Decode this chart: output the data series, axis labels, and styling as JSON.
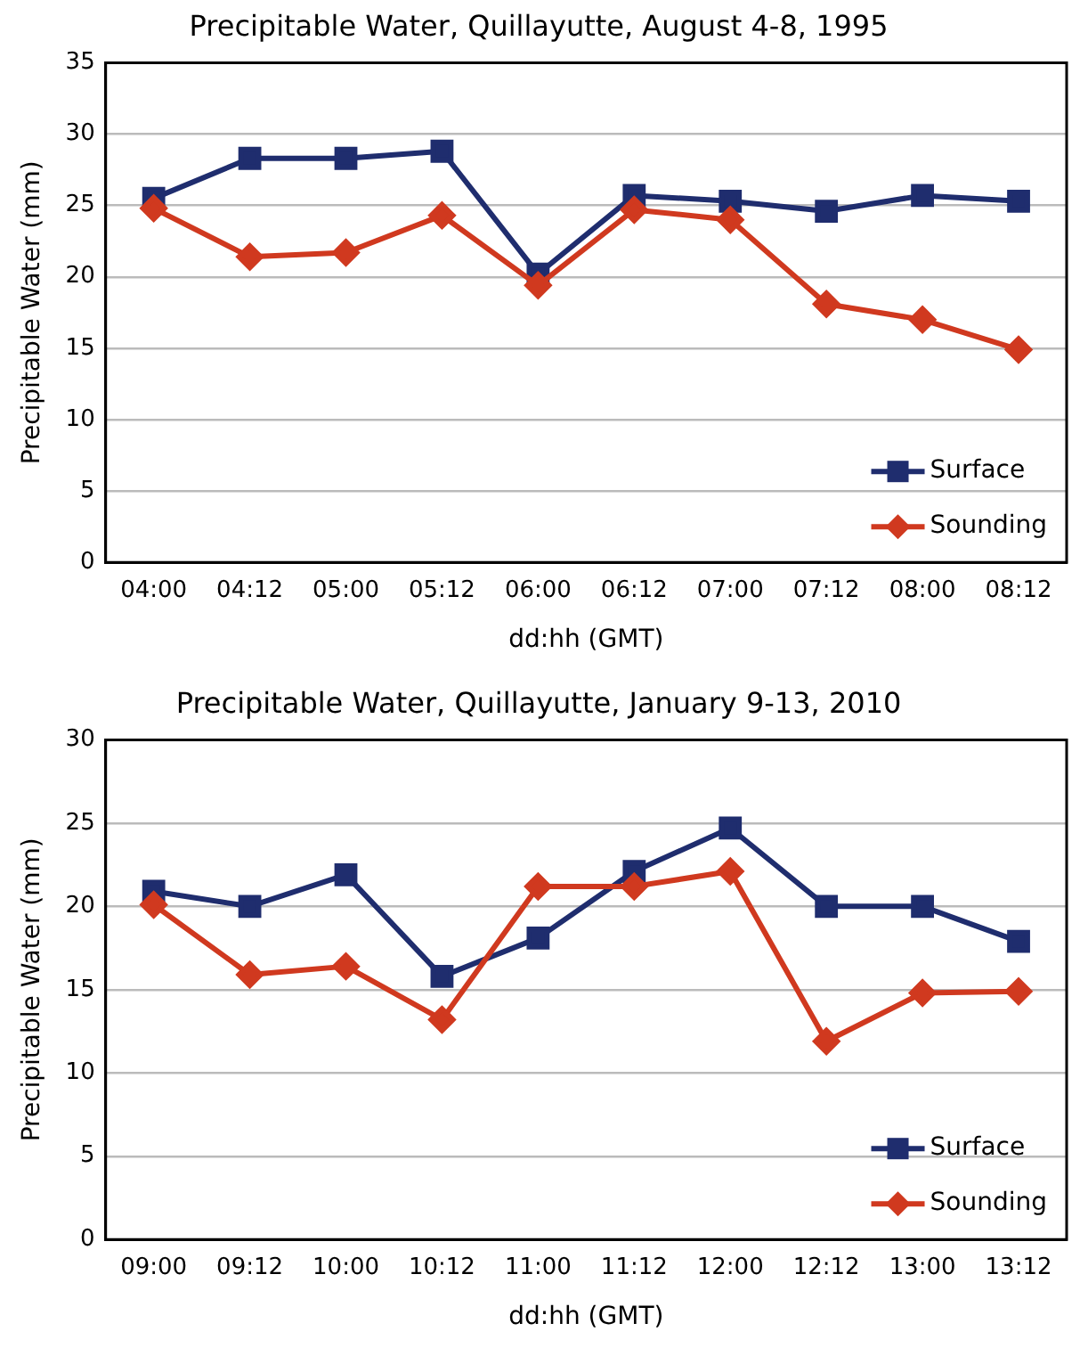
{
  "chart_data": [
    {
      "type": "line",
      "title": "Precipitable Water, Quillayutte, August 4-8, 1995",
      "xlabel": "dd:hh (GMT)",
      "ylabel": "Precipitable Water (mm)",
      "categories": [
        "04:00",
        "04:12",
        "05:00",
        "05:12",
        "06:00",
        "06:12",
        "07:00",
        "07:12",
        "08:00",
        "08:12"
      ],
      "series": [
        {
          "name": "Surface",
          "color": "#1f2d6e",
          "marker": "square",
          "values": [
            25.5,
            28.3,
            28.3,
            28.8,
            20.2,
            25.7,
            25.3,
            24.6,
            25.7,
            25.3
          ]
        },
        {
          "name": "Sounding",
          "color": "#d0391f",
          "marker": "diamond",
          "values": [
            24.8,
            21.4,
            21.7,
            24.3,
            19.4,
            24.7,
            24.0,
            18.1,
            17.0,
            14.9
          ]
        }
      ],
      "ylim": [
        0,
        35
      ],
      "yticks": [
        0,
        5,
        10,
        15,
        20,
        25,
        30,
        35
      ],
      "grid": "y",
      "legend": "bottom right",
      "line_style": "solid"
    },
    {
      "type": "line",
      "title": "Precipitable Water, Quillayutte, January 9-13, 2010",
      "xlabel": "dd:hh (GMT)",
      "ylabel": "Precipitable Water (mm)",
      "categories": [
        "09:00",
        "09:12",
        "10:00",
        "10:12",
        "11:00",
        "11:12",
        "12:00",
        "12:12",
        "13:00",
        "13:12"
      ],
      "series": [
        {
          "name": "Surface",
          "color": "#1f2d6e",
          "marker": "square",
          "values": [
            20.9,
            20.0,
            21.9,
            15.8,
            18.1,
            22.1,
            24.7,
            20.0,
            20.0,
            17.9
          ]
        },
        {
          "name": "Sounding",
          "color": "#d0391f",
          "marker": "diamond",
          "values": [
            20.1,
            15.9,
            16.4,
            13.2,
            21.2,
            21.2,
            22.1,
            11.9,
            14.8,
            14.9
          ]
        }
      ],
      "ylim": [
        0,
        30
      ],
      "yticks": [
        0,
        5,
        10,
        15,
        20,
        25,
        30
      ],
      "grid": "y",
      "legend": "bottom right",
      "line_style": "solid"
    }
  ]
}
